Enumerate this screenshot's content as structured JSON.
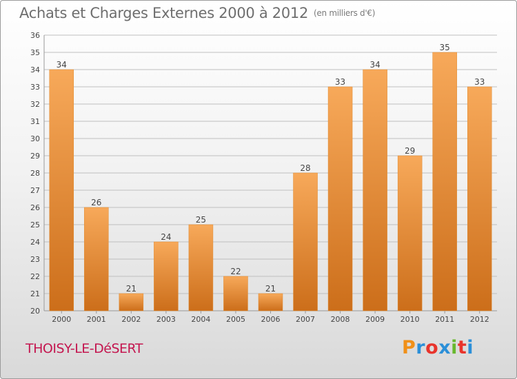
{
  "chart_data": {
    "type": "bar",
    "title": "Achats et Charges Externes 2000 à 2012",
    "subtitle": "(en milliers d'€)",
    "categories": [
      "2000",
      "2001",
      "2002",
      "2003",
      "2004",
      "2005",
      "2006",
      "2007",
      "2008",
      "2009",
      "2010",
      "2011",
      "2012"
    ],
    "values": [
      34,
      26,
      21,
      24,
      25,
      22,
      21,
      28,
      33,
      34,
      29,
      35,
      33
    ],
    "ylim": [
      20,
      36
    ],
    "yticks": [
      20,
      21,
      22,
      23,
      24,
      25,
      26,
      27,
      28,
      29,
      30,
      31,
      32,
      33,
      34,
      35,
      36
    ],
    "grid": true,
    "colors": {
      "bar_light": "#f7a95a",
      "bar_dark": "#cc6e1a",
      "grid": "#bfbfbf"
    }
  },
  "footer": {
    "commune": "THOISY-LE-DéSERT",
    "logo_text": "Proxiti",
    "logo_colors": [
      "#f09018",
      "#2b8fd8",
      "#e8342c",
      "#2b8fd8",
      "#68b82e",
      "#e8342c",
      "#2b8fd8"
    ]
  }
}
